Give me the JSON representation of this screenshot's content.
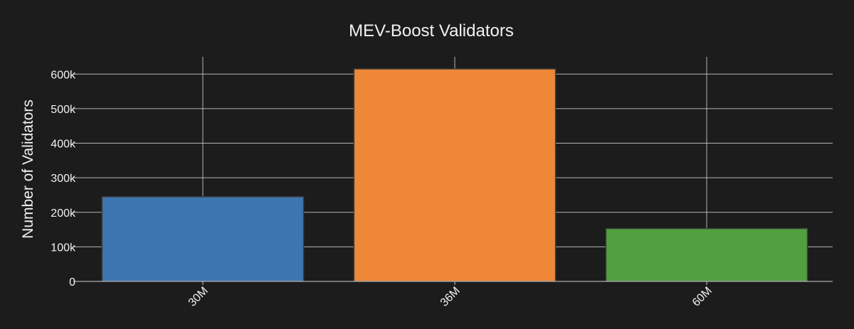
{
  "chart_data": {
    "type": "bar",
    "title": "MEV-Boost Validators",
    "xlabel": "",
    "ylabel": "Number of Validators",
    "categories": [
      "30M",
      "36M",
      "60M"
    ],
    "values": [
      245000,
      615000,
      153000
    ],
    "colors": [
      "#3d76b1",
      "#ee8838",
      "#519f3e"
    ],
    "ylim": [
      0,
      650000
    ],
    "yticks": [
      0,
      100000,
      200000,
      300000,
      400000,
      500000,
      600000
    ],
    "ytick_labels": [
      "0",
      "100k",
      "200k",
      "300k",
      "400k",
      "500k",
      "600k"
    ],
    "grid": true,
    "legend": "none"
  }
}
